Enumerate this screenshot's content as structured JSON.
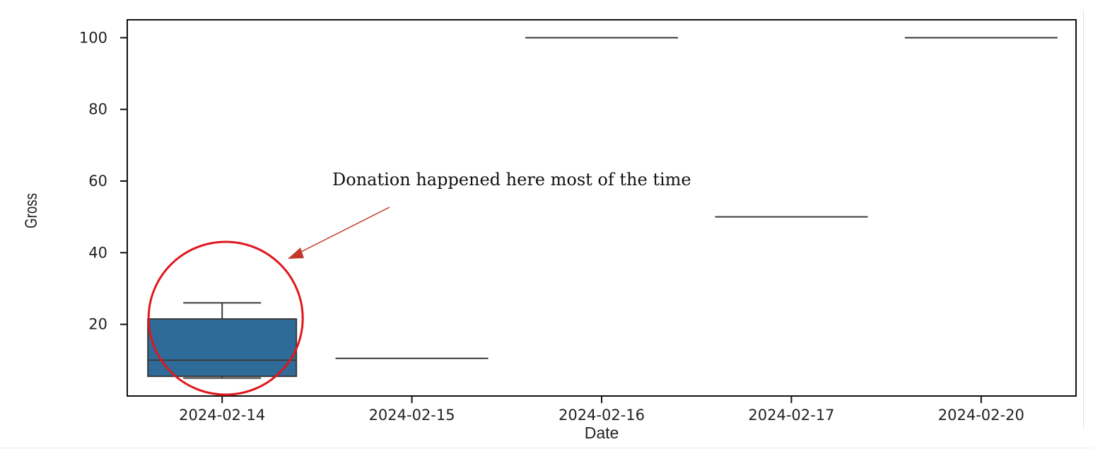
{
  "chart_data": {
    "type": "box",
    "title": "",
    "xlabel": "Date",
    "ylabel": "Gross",
    "categories": [
      "2024-02-14",
      "2024-02-15",
      "2024-02-16",
      "2024-02-17",
      "2024-02-20"
    ],
    "ylim": [
      0,
      105
    ],
    "yticks": [
      20,
      40,
      60,
      80,
      100
    ],
    "grid": false,
    "box_color": "#2e6b99",
    "line_color": "#3a3a3a",
    "boxes": [
      {
        "category": "2024-02-14",
        "whisker_low": 5,
        "q1": 5.5,
        "median": 10,
        "q3": 21.5,
        "whisker_high": 26
      },
      {
        "category": "2024-02-15",
        "whisker_low": 10.5,
        "q1": 10.5,
        "median": 10.5,
        "q3": 10.5,
        "whisker_high": 10.5
      },
      {
        "category": "2024-02-16",
        "whisker_low": 100,
        "q1": 100,
        "median": 100,
        "q3": 100,
        "whisker_high": 100
      },
      {
        "category": "2024-02-17",
        "whisker_low": 50,
        "q1": 50,
        "median": 50,
        "q3": 50,
        "whisker_high": 50
      },
      {
        "category": "2024-02-20",
        "whisker_low": 100,
        "q1": 100,
        "median": 100,
        "q3": 100,
        "whisker_high": 100
      }
    ],
    "annotations": [
      {
        "text": "Donation happened here most of the time",
        "target_category": "2024-02-14",
        "highlight": "circle",
        "highlight_color": "#e0161c",
        "arrow_color": "#c0392b"
      }
    ]
  }
}
